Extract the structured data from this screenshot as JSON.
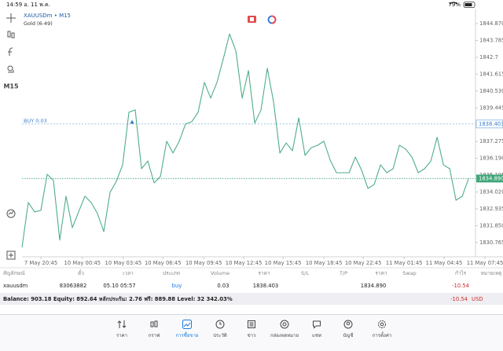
{
  "status_bar": {
    "time": "14:59  อ. 11 พ.ค.",
    "battery": "79%"
  },
  "symbol": {
    "name": "XAUUSDm • M15",
    "description": "Gold (6-49)"
  },
  "timeframe": "M15",
  "chart_data": {
    "type": "line",
    "color": "#4fae87",
    "x": [
      0,
      1,
      2,
      3,
      4,
      5,
      6,
      7,
      8,
      9,
      10,
      11,
      12,
      13,
      14,
      15,
      16,
      17,
      18,
      19,
      20,
      21,
      22,
      23,
      24,
      25,
      26,
      27,
      28,
      29,
      30,
      31,
      32,
      33,
      34,
      35,
      36,
      37,
      38,
      39,
      40,
      41,
      42,
      43,
      44,
      45,
      46,
      47,
      48,
      49,
      50,
      51,
      52,
      53,
      54,
      55,
      56,
      57,
      58,
      59,
      60,
      61,
      62,
      63,
      64,
      65,
      66,
      67,
      68,
      69,
      70,
      71
    ],
    "values": [
      1830.46,
      1833.34,
      1832.74,
      1832.84,
      1835.16,
      1834.76,
      1830.92,
      1833.75,
      1831.72,
      1832.74,
      1833.75,
      1833.34,
      1832.63,
      1831.47,
      1834.0,
      1834.71,
      1835.77,
      1839.16,
      1839.31,
      1835.52,
      1836.02,
      1834.61,
      1835.01,
      1837.29,
      1836.53,
      1837.29,
      1838.4,
      1838.55,
      1839.16,
      1841.08,
      1840.07,
      1841.08,
      1842.59,
      1844.2,
      1843.1,
      1840.07,
      1841.84,
      1838.45,
      1839.31,
      1841.99,
      1839.81,
      1836.53,
      1837.18,
      1836.68,
      1838.8,
      1836.38,
      1836.88,
      1837.03,
      1837.29,
      1836.07,
      1835.26,
      1835.26,
      1835.26,
      1836.27,
      1835.42,
      1834.25,
      1834.51,
      1835.77,
      1835.26,
      1835.52,
      1837.03,
      1836.78,
      1836.27,
      1835.26,
      1835.52,
      1836.02,
      1837.54,
      1835.77,
      1835.52,
      1833.49,
      1833.75,
      1834.89
    ],
    "xlim": [
      0,
      72.1
    ],
    "xticks": [
      {
        "value": 3,
        "label": "7 May 20:45"
      },
      {
        "value": 9.6,
        "label": "10 May 00:45"
      },
      {
        "value": 16.1,
        "label": "10 May 03:45"
      },
      {
        "value": 22.4,
        "label": "10 May 06:45"
      },
      {
        "value": 28.9,
        "label": "10 May 09:45"
      },
      {
        "value": 35.25,
        "label": "10 May 12:45"
      },
      {
        "value": 41.5,
        "label": "10 May 15:45"
      },
      {
        "value": 48,
        "label": "10 May 18:45"
      },
      {
        "value": 54.25,
        "label": "10 May 22:45"
      },
      {
        "value": 60.75,
        "label": "11 May 01:45"
      },
      {
        "value": 67.1,
        "label": "11 May 04:45"
      },
      {
        "value": 73.6,
        "label": "11 May 07:45"
      }
    ],
    "ylim": [
      1829.95,
      1845.78
    ],
    "yticks": [
      {
        "value": 1844.87,
        "label": "1844.870"
      },
      1843.785,
      1842.7,
      1841.615,
      {
        "value": 1840.53,
        "label": "1840.530"
      },
      1839.445,
      1837.275,
      {
        "value": 1836.19,
        "label": "1836.190"
      },
      1835.105,
      {
        "value": 1834.02,
        "label": "1834.020"
      },
      1832.935,
      {
        "value": 1831.85,
        "label": "1831.850"
      },
      1830.765
    ],
    "price_lines": [
      {
        "value": 1838.403,
        "label": "BUY 0.03",
        "color": "#7fb3e3",
        "entry_x": 17.5
      },
      {
        "value": 1834.89,
        "value_label": "1834.890",
        "color": "#3fa67a"
      }
    ]
  },
  "positions": {
    "headers": [
      "สัญลักษณ์",
      "ตั๋ว",
      "เวลา",
      "ประเภท",
      "Volume",
      "ราคา",
      "S/L",
      "T/P",
      "ราคา",
      "Swap",
      "กำไร",
      "หมายเหตุ"
    ],
    "rows": [
      {
        "symbol": "xauusdm",
        "ticket": "83063882",
        "time": "05.10 05:57",
        "type": "buy",
        "volume": "0.03",
        "price": "1838.403",
        "current_price": "1834.890",
        "profit": "-10.54"
      }
    ]
  },
  "balance": {
    "text": "Balance: 903.18 Equity: 892.64 หลักประกัน: 2.76 ฟรี: 889.88 Level: 32 342.03%",
    "profit": "-10.54",
    "currency": "USD"
  },
  "tabs": [
    "ราคา",
    "กราฟ",
    "การซื้อขาย",
    "ประวัติ",
    "ข่าว",
    "กล่องจดหมาย",
    "แชท",
    "บัญชี",
    "การตั้งค่า"
  ]
}
